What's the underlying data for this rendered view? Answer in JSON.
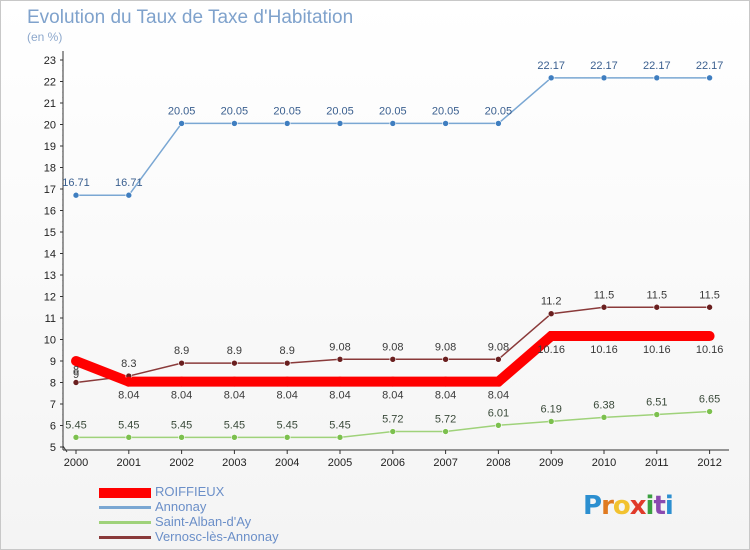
{
  "chart_data": {
    "type": "line",
    "title": "Evolution du Taux de Taxe d'Habitation",
    "subtitle": "(en %)",
    "xlabel": "",
    "ylabel": "",
    "categories": [
      "2000",
      "2001",
      "2002",
      "2003",
      "2004",
      "2005",
      "2006",
      "2007",
      "2008",
      "2009",
      "2010",
      "2011",
      "2012"
    ],
    "ylim": [
      5,
      23
    ],
    "yticks": [
      5,
      6,
      7,
      8,
      9,
      10,
      11,
      12,
      13,
      14,
      15,
      16,
      17,
      18,
      19,
      20,
      21,
      22,
      23
    ],
    "grid": false,
    "legend_position": "bottom-left",
    "series": [
      {
        "name": "Annonay",
        "color": "#7aa7d3",
        "marker": "#3f7ec0",
        "values": [
          16.71,
          16.71,
          20.05,
          20.05,
          20.05,
          20.05,
          20.05,
          20.05,
          20.05,
          22.17,
          22.17,
          22.17,
          22.17
        ],
        "labels": [
          "16.71",
          "16.71",
          "20.05",
          "20.05",
          "20.05",
          "20.05",
          "20.05",
          "20.05",
          "20.05",
          "22.17",
          "22.17",
          "22.17",
          "22.17"
        ]
      },
      {
        "name": "Vernosc-lès-Annonay",
        "color": "#8a3a3a",
        "marker": "#6a1f1f",
        "values": [
          8,
          8.3,
          8.9,
          8.9,
          8.9,
          9.08,
          9.08,
          9.08,
          9.08,
          11.2,
          11.5,
          11.5,
          11.5
        ],
        "labels": [
          "8",
          "8.3",
          "8.9",
          "8.9",
          "8.9",
          "9.08",
          "9.08",
          "9.08",
          "9.08",
          "11.2",
          "11.5",
          "11.5",
          "11.5"
        ]
      },
      {
        "name": "Saint-Alban-d'Ay",
        "color": "#9fd27a",
        "marker": "#7cc04e",
        "values": [
          5.45,
          5.45,
          5.45,
          5.45,
          5.45,
          5.45,
          5.72,
          5.72,
          6.01,
          6.19,
          6.38,
          6.51,
          6.65
        ],
        "labels": [
          "5.45",
          "5.45",
          "5.45",
          "5.45",
          "5.45",
          "5.45",
          "5.72",
          "5.72",
          "6.01",
          "6.19",
          "6.38",
          "6.51",
          "6.65"
        ]
      },
      {
        "name": "ROIFFIEUX",
        "color": "#ff0000",
        "marker": "#ff0000",
        "values": [
          9,
          8.04,
          8.04,
          8.04,
          8.04,
          8.04,
          8.04,
          8.04,
          8.04,
          10.16,
          10.16,
          10.16,
          10.16
        ],
        "labels": [
          "9",
          "8.04",
          "8.04",
          "8.04",
          "8.04",
          "8.04",
          "8.04",
          "8.04",
          "8.04",
          "10.16",
          "10.16",
          "10.16",
          "10.16"
        ]
      }
    ],
    "legend": [
      "ROIFFIEUX",
      "Annonay",
      "Saint-Alban-d'Ay",
      "Vernosc-lès-Annonay"
    ]
  },
  "logo": {
    "letters": [
      "P",
      "r",
      "o",
      "x",
      "i",
      "t",
      "i"
    ],
    "colors": [
      "#2c8fd0",
      "#e07a20",
      "#f2c230",
      "#e03a2a",
      "#3aa040",
      "#8a4ab0",
      "#2c8fd0"
    ]
  }
}
